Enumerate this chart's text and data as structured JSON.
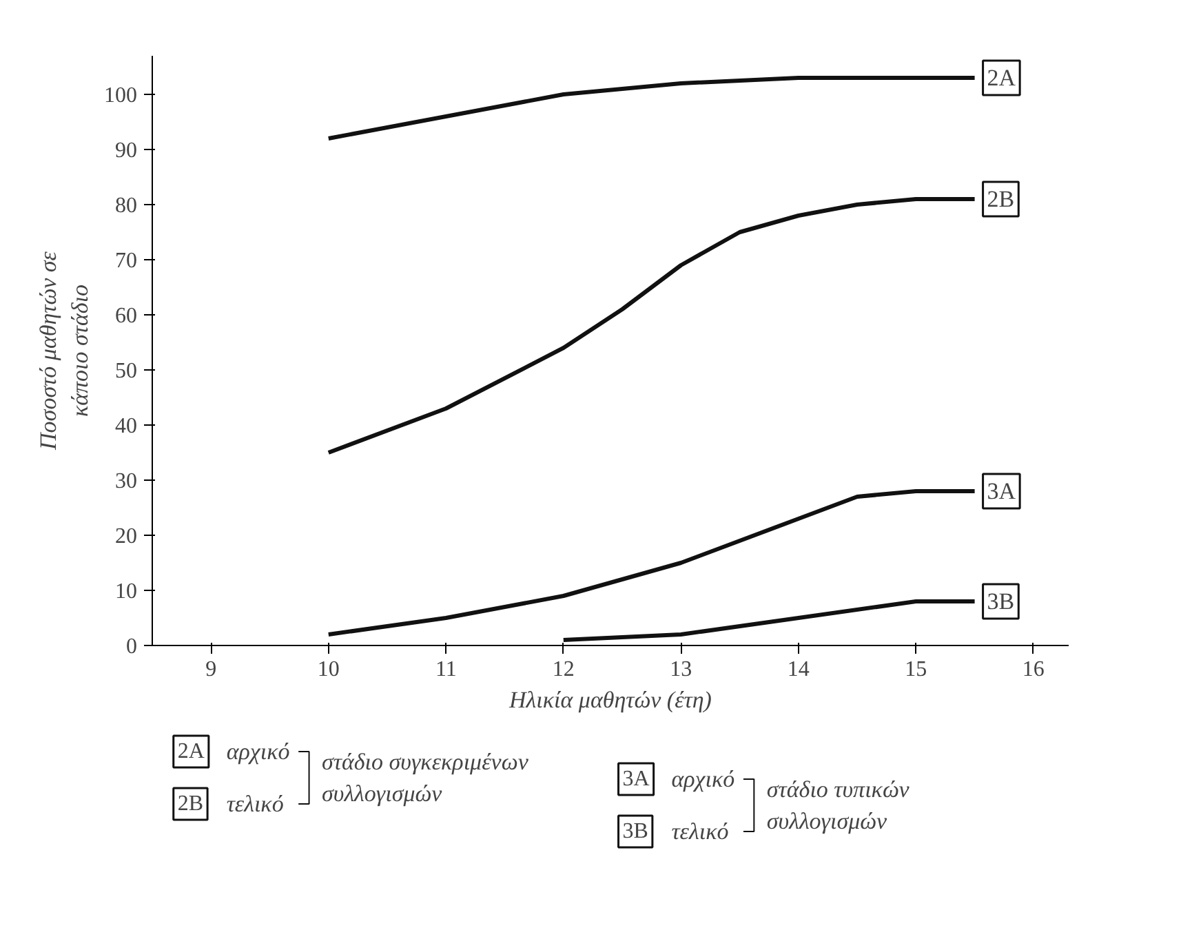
{
  "chart_data": {
    "type": "line",
    "xlabel": "Ηλικία μαθητών (έτη)",
    "ylabel": "Ποσοστό μαθητών σε\nκάποιο στάδιο",
    "xlim": [
      8.5,
      16.3
    ],
    "xticks": [
      9,
      10,
      11,
      12,
      13,
      14,
      15,
      16
    ],
    "ylim": [
      0,
      107
    ],
    "yticks": [
      0,
      10,
      20,
      30,
      40,
      50,
      60,
      70,
      80,
      90,
      100
    ],
    "series": [
      {
        "name": "2A",
        "color": "#111111",
        "x": [
          10,
          11,
          12,
          13,
          14,
          15,
          15.5
        ],
        "values": [
          92,
          96,
          100,
          102,
          103,
          103,
          103
        ]
      },
      {
        "name": "2B",
        "color": "#111111",
        "x": [
          10,
          11,
          12,
          12.5,
          13,
          13.5,
          14,
          14.5,
          15,
          15.5
        ],
        "values": [
          35,
          43,
          54,
          61,
          69,
          75,
          78,
          80,
          81,
          81
        ]
      },
      {
        "name": "3A",
        "color": "#111111",
        "x": [
          10,
          11,
          12,
          13,
          14,
          14.5,
          15,
          15.5
        ],
        "values": [
          2,
          5,
          9,
          15,
          23,
          27,
          28,
          28
        ]
      },
      {
        "name": "3B",
        "color": "#111111",
        "x": [
          12,
          13,
          14,
          15,
          15.5
        ],
        "values": [
          1,
          2,
          5,
          8,
          8
        ]
      }
    ],
    "annotations": [
      "αρχικό",
      "τελικό",
      "στάδιο συγκεκριμένων\nσυλλογισμών",
      "αρχικό",
      "τελικό",
      "στάδιο τυπικών\nσυλλογισμών"
    ],
    "grid": false,
    "legend": "bottom",
    "marker": "none",
    "line_style": "solid"
  }
}
